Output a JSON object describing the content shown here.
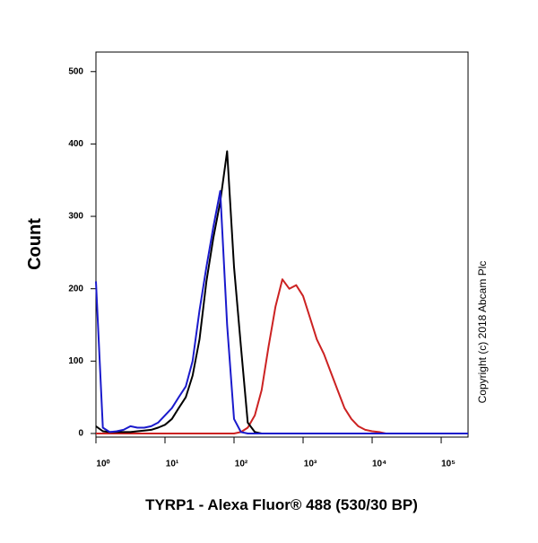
{
  "chart_data": {
    "type": "line",
    "xlabel": "TYRP1 - Alexa Fluor® 488 (530/30 BP)",
    "ylabel": "Count",
    "annotation": "Copyright (c) 2018 Abcam Plc",
    "log_x": true,
    "xlim": [
      1,
      245000
    ],
    "ylim": [
      -5,
      527
    ],
    "xticks": [
      {
        "value": 1,
        "label": "10⁰"
      },
      {
        "value": 10,
        "label": "10¹"
      },
      {
        "value": 100,
        "label": "10²"
      },
      {
        "value": 1000,
        "label": "10³"
      },
      {
        "value": 10000,
        "label": "10⁴"
      },
      {
        "value": 100000,
        "label": "10⁵"
      }
    ],
    "yticks": [
      0,
      100,
      200,
      300,
      400,
      500
    ],
    "x": [
      1,
      1.26,
      1.58,
      2.0,
      2.51,
      3.16,
      3.98,
      5.01,
      6.31,
      7.94,
      10,
      12.6,
      15.8,
      20,
      25.1,
      31.6,
      39.8,
      50.1,
      63.1,
      79.4,
      100,
      126,
      158,
      200,
      251,
      316,
      398,
      501,
      631,
      794,
      1000,
      1260,
      1580,
      2000,
      2510,
      3160,
      3980,
      5010,
      6310,
      7940,
      10000,
      12600,
      15800,
      20000,
      25100,
      31600,
      39800,
      50100,
      63100,
      79400,
      100000,
      126000,
      158000,
      200000,
      245000
    ],
    "series": [
      {
        "color": "#cc2222",
        "values": [
          0,
          0,
          0,
          0,
          0,
          0,
          0,
          0,
          0,
          0,
          0,
          0,
          0,
          0,
          0,
          0,
          0,
          0,
          0,
          0,
          0,
          2,
          8,
          25,
          60,
          120,
          175,
          213,
          200,
          205,
          190,
          160,
          130,
          110,
          85,
          60,
          35,
          20,
          10,
          5,
          3,
          2,
          0,
          0,
          0,
          0,
          0,
          0,
          0,
          0,
          0,
          0,
          0,
          0,
          0
        ]
      },
      {
        "color": "#000000",
        "values": [
          10,
          3,
          2,
          2,
          2,
          2,
          3,
          4,
          5,
          8,
          12,
          20,
          35,
          50,
          80,
          130,
          210,
          270,
          320,
          390,
          230,
          120,
          15,
          2,
          0,
          0,
          0,
          0,
          0,
          0,
          0,
          0,
          0,
          0,
          0,
          0,
          0,
          0,
          0,
          0,
          0,
          0,
          0,
          0,
          0,
          0,
          0,
          0,
          0,
          0,
          0,
          0,
          0,
          0,
          0
        ]
      },
      {
        "color": "#1a1acc",
        "values": [
          210,
          8,
          2,
          3,
          5,
          10,
          8,
          8,
          10,
          15,
          25,
          35,
          50,
          65,
          100,
          170,
          230,
          285,
          335,
          150,
          20,
          2,
          0,
          0,
          0,
          0,
          0,
          0,
          0,
          0,
          0,
          0,
          0,
          0,
          0,
          0,
          0,
          0,
          0,
          0,
          0,
          0,
          0,
          0,
          0,
          0,
          0,
          0,
          0,
          0,
          0,
          0,
          0,
          0,
          0
        ]
      }
    ]
  }
}
